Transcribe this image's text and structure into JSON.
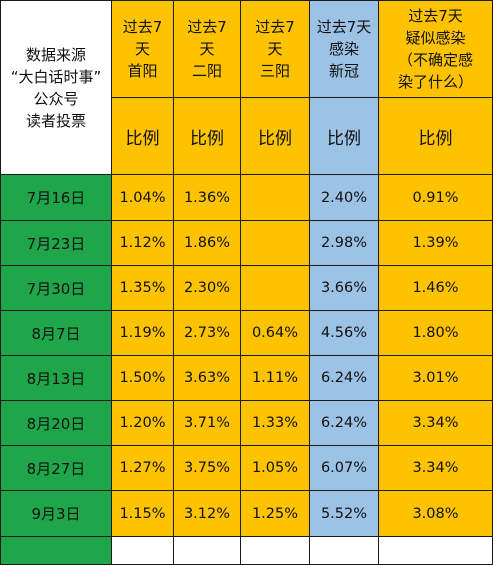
{
  "source_label_lines": [
    "数据来源",
    "“大白话时事”",
    "公众号",
    "读者投票"
  ],
  "columns": [
    {
      "header_lines": [
        "过去7",
        "天",
        "首阳"
      ],
      "subheader": "比例",
      "color": "#fdc200"
    },
    {
      "header_lines": [
        "过去7",
        "天",
        "二阳"
      ],
      "subheader": "比例",
      "color": "#fdc200"
    },
    {
      "header_lines": [
        "过去7",
        "天",
        "三阳"
      ],
      "subheader": "比例",
      "color": "#fdc200"
    },
    {
      "header_lines": [
        "过去7天",
        "感染",
        "新冠"
      ],
      "subheader": "比例",
      "color": "#9cc2e5"
    },
    {
      "header_lines": [
        "过去7天",
        "疑似感染",
        "（不确定感",
        "染了什么）"
      ],
      "subheader": "比例",
      "color": "#fdc200"
    }
  ],
  "rows": [
    {
      "date": "7月16日",
      "values": [
        "1.04%",
        "1.36%",
        "",
        "2.40%",
        "0.91%"
      ]
    },
    {
      "date": "7月23日",
      "values": [
        "1.12%",
        "1.86%",
        "",
        "2.98%",
        "1.39%"
      ]
    },
    {
      "date": "7月30日",
      "values": [
        "1.35%",
        "2.30%",
        "",
        "3.66%",
        "1.46%"
      ]
    },
    {
      "date": "8月7日",
      "values": [
        "1.19%",
        "2.73%",
        "0.64%",
        "4.56%",
        "1.80%"
      ]
    },
    {
      "date": "8月13日",
      "values": [
        "1.50%",
        "3.63%",
        "1.11%",
        "6.24%",
        "3.01%"
      ]
    },
    {
      "date": "8月20日",
      "values": [
        "1.20%",
        "3.71%",
        "1.33%",
        "6.24%",
        "3.34%"
      ]
    },
    {
      "date": "8月27日",
      "values": [
        "1.27%",
        "3.75%",
        "1.05%",
        "6.07%",
        "3.34%"
      ]
    },
    {
      "date": "9月3日",
      "values": [
        "1.15%",
        "3.12%",
        "1.25%",
        "5.52%",
        "3.08%"
      ]
    }
  ],
  "colors": {
    "date_green": "#1fa64a",
    "header_yellow": "#fdc200",
    "covid_blue": "#9cc2e5"
  }
}
